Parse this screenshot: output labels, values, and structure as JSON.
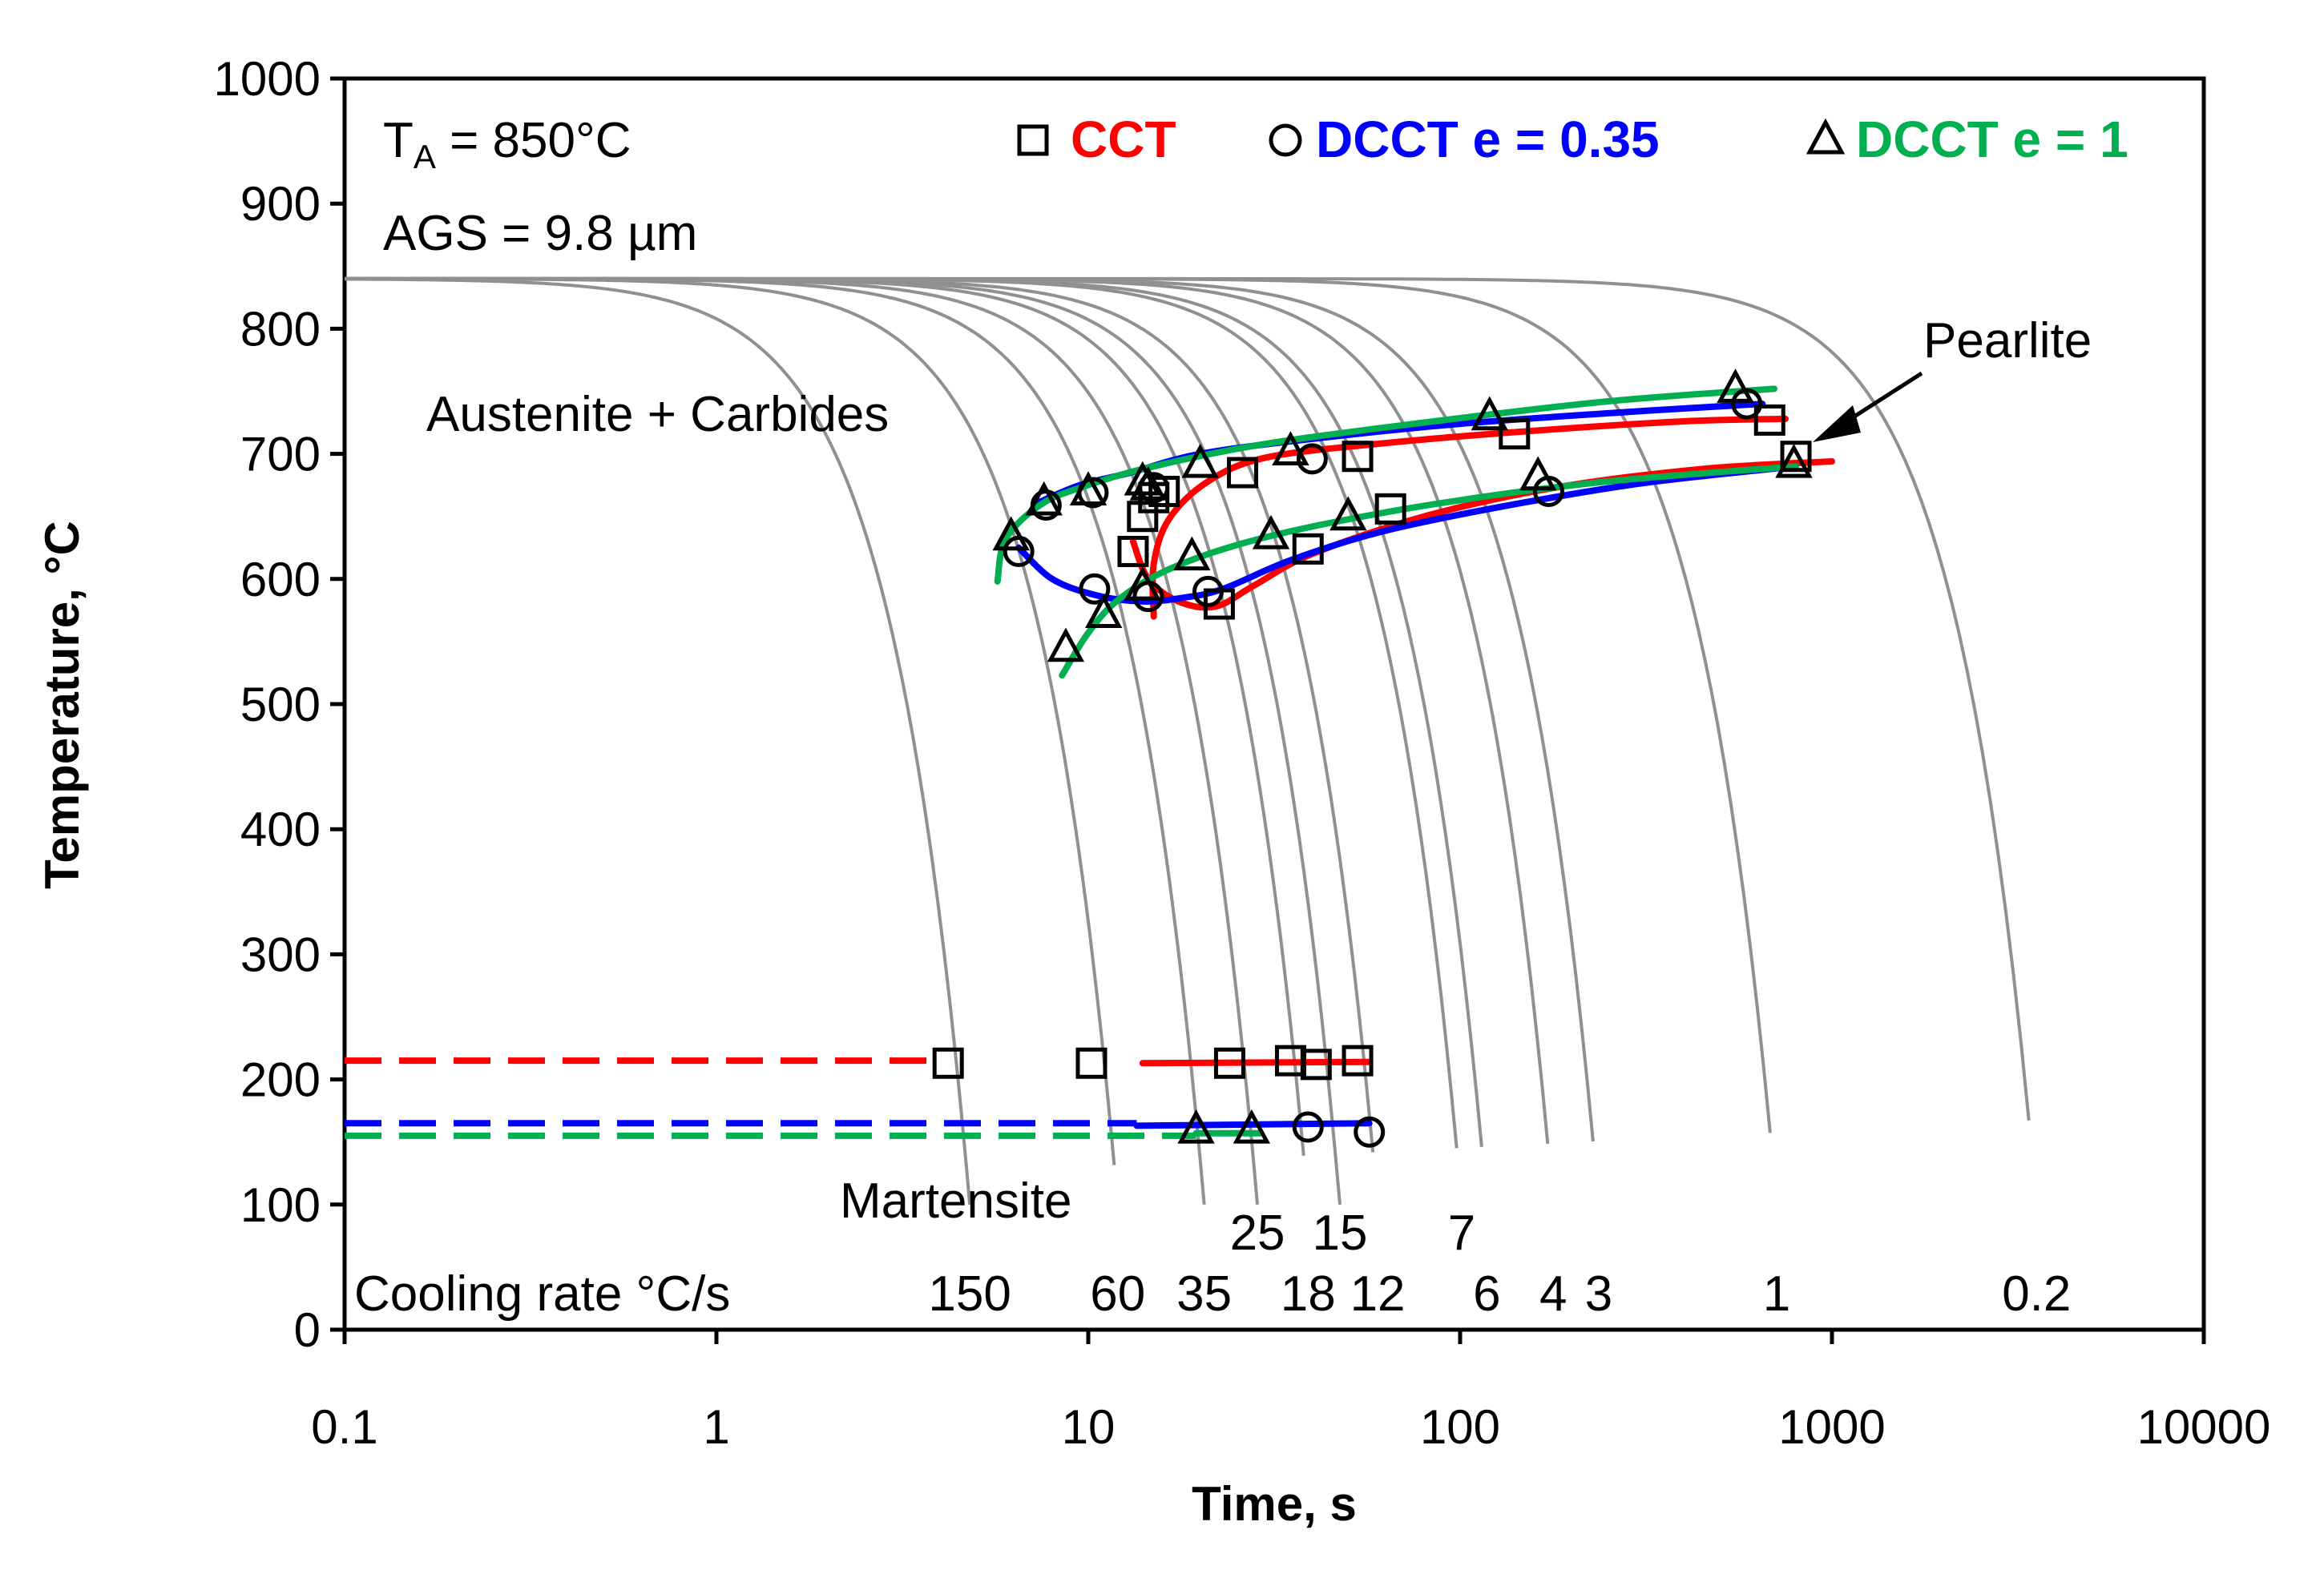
{
  "chart_data": {
    "type": "line",
    "xscale": "log",
    "xlabel": "Time, s",
    "ylabel": "Temperature, °C",
    "xlim": [
      0.1,
      10000
    ],
    "ylim": [
      0,
      1000
    ],
    "xticks": [
      "0.1",
      "1",
      "10",
      "100",
      "1000",
      "10000"
    ],
    "yticks": [
      "0",
      "100",
      "200",
      "300",
      "400",
      "500",
      "600",
      "700",
      "800",
      "900",
      "1000"
    ],
    "annotations": {
      "ta_prefix": "T",
      "ta_sub": "A",
      "ta_value": " = 850°C",
      "ags": "AGS = 9.8 µm",
      "austenite": "Austenite + Carbides",
      "pearlite": "Pearlite",
      "martensite": "Martensite",
      "cooling_rate": "Cooling rate °C/s"
    },
    "legend": [
      {
        "marker": "square",
        "label": "CCT",
        "color": "#ff0000"
      },
      {
        "marker": "circle",
        "label": "DCCT e = 0.35",
        "color": "#0000ff"
      },
      {
        "marker": "triangle",
        "label": "DCCT e = 1",
        "color": "#00b050"
      }
    ],
    "cooling_curves": {
      "start_temp": 840,
      "color": "#909090",
      "rates": [
        {
          "label": "150",
          "t100": 4.8,
          "row": "bottom"
        },
        {
          "label": "60",
          "t100": 12,
          "row": "bottom"
        },
        {
          "label": "35",
          "t100": 20.5,
          "row": "bottom"
        },
        {
          "label": "25",
          "t100": 28.5,
          "row": "top"
        },
        {
          "label": "18",
          "t100": 39,
          "row": "bottom"
        },
        {
          "label": "15",
          "t100": 47.5,
          "row": "top"
        },
        {
          "label": "12",
          "t100": 60,
          "row": "bottom"
        },
        {
          "label": "7",
          "t100": 101,
          "row": "top"
        },
        {
          "label": "6",
          "t100": 118,
          "row": "bottom"
        },
        {
          "label": "4",
          "t100": 178,
          "row": "bottom"
        },
        {
          "label": "3",
          "t100": 236,
          "row": "bottom"
        },
        {
          "label": "1",
          "t100": 710,
          "row": "bottom"
        },
        {
          "label": "0.2",
          "t100": 3550,
          "row": "bottom"
        }
      ]
    },
    "series": [
      {
        "name": "CCT",
        "marker": "square",
        "color": "#ff0000",
        "points": [
          [
            4.2,
            213
          ],
          [
            10.2,
            213
          ],
          [
            24,
            213
          ],
          [
            35,
            215
          ],
          [
            41,
            212
          ],
          [
            53,
            215
          ],
          [
            13.2,
            622
          ],
          [
            14,
            650
          ],
          [
            15,
            665
          ],
          [
            16,
            670
          ],
          [
            22.5,
            580
          ],
          [
            26,
            685
          ],
          [
            39,
            624
          ],
          [
            53,
            698
          ],
          [
            65,
            656
          ],
          [
            140,
            716
          ],
          [
            680,
            727
          ],
          [
            800,
            698
          ]
        ],
        "curves": [
          [
            [
              15,
              570
            ],
            [
              15,
              612
            ],
            [
              16.5,
              648
            ],
            [
              21,
              678
            ],
            [
              30,
              697
            ],
            [
              60,
              708
            ],
            [
              150,
              718
            ],
            [
              400,
              726
            ],
            [
              750,
              728
            ]
          ],
          [
            [
              13.2,
              630
            ],
            [
              14.5,
              600
            ],
            [
              17.5,
              582
            ],
            [
              22,
              578
            ],
            [
              28,
              595
            ],
            [
              40,
              620
            ],
            [
              80,
              650
            ],
            [
              180,
              673
            ],
            [
              450,
              688
            ],
            [
              1000,
              694
            ]
          ],
          [
            [
              14,
              213
            ],
            [
              57,
              214
            ]
          ]
        ],
        "dashed": [
          [
            0.1,
            215
          ],
          [
            4,
            215
          ]
        ]
      },
      {
        "name": "DCCT e = 0.35",
        "marker": "circle",
        "color": "#0000ff",
        "points": [
          [
            6.5,
            622
          ],
          [
            7.7,
            659
          ],
          [
            10.3,
            669
          ],
          [
            10.4,
            592
          ],
          [
            14.5,
            586
          ],
          [
            15,
            673
          ],
          [
            21,
            590
          ],
          [
            40,
            696
          ],
          [
            173,
            670
          ],
          [
            590,
            740
          ],
          [
            39,
            162
          ],
          [
            57,
            158
          ]
        ],
        "curves": [
          [
            [
              7.2,
              660
            ],
            [
              9.5,
              675
            ],
            [
              13,
              685
            ],
            [
              20,
              700
            ],
            [
              40,
              712
            ],
            [
              100,
              724
            ],
            [
              300,
              734
            ],
            [
              650,
              740
            ]
          ],
          [
            [
              6.5,
              625
            ],
            [
              8,
              600
            ],
            [
              10.5,
              587
            ],
            [
              14,
              582
            ],
            [
              18,
              585
            ],
            [
              23,
              592
            ],
            [
              35,
              615
            ],
            [
              60,
              637
            ],
            [
              120,
              656
            ],
            [
              300,
              676
            ],
            [
              800,
              690
            ]
          ],
          [
            [
              13.5,
              163
            ],
            [
              57,
              165
            ]
          ]
        ],
        "dashed": [
          [
            0.1,
            165
          ],
          [
            13.5,
            165
          ]
        ]
      },
      {
        "name": "DCCT e = 1",
        "marker": "triangle",
        "color": "#00b050",
        "points": [
          [
            6.2,
            634
          ],
          [
            7.6,
            662
          ],
          [
            10,
            670
          ],
          [
            14,
            678
          ],
          [
            14.5,
            674
          ],
          [
            20,
            692
          ],
          [
            35,
            702
          ],
          [
            120,
            730
          ],
          [
            550,
            752
          ],
          [
            8.7,
            545
          ],
          [
            11,
            572
          ],
          [
            14,
            594
          ],
          [
            19,
            618
          ],
          [
            31,
            635
          ],
          [
            50,
            650
          ],
          [
            162,
            682
          ],
          [
            790,
            692
          ],
          [
            19.5,
            160
          ],
          [
            27.5,
            160
          ]
        ],
        "curves": [
          [
            [
              5.7,
              598
            ],
            [
              6,
              632
            ],
            [
              7.5,
              660
            ],
            [
              10,
              675
            ],
            [
              15,
              690
            ],
            [
              30,
              708
            ],
            [
              80,
              725
            ],
            [
              250,
              742
            ],
            [
              700,
              752
            ]
          ],
          [
            [
              8.5,
              523
            ],
            [
              10,
              557
            ],
            [
              12,
              583
            ],
            [
              16,
              606
            ],
            [
              25,
              627
            ],
            [
              45,
              645
            ],
            [
              100,
              663
            ],
            [
              250,
              678
            ],
            [
              800,
              690
            ]
          ],
          [
            [
              19.5,
              157
            ],
            [
              29,
              157
            ]
          ]
        ],
        "dashed": [
          [
            0.1,
            155
          ],
          [
            19.5,
            155
          ]
        ]
      }
    ]
  }
}
